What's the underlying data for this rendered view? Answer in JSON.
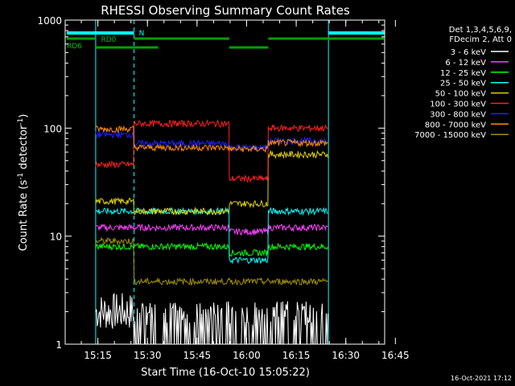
{
  "chart_data": {
    "type": "line",
    "title": "RHESSI Observing Summary Count Rates",
    "xlabel": "Start Time (16-Oct-10 15:05:22)",
    "ylabel_main": "Count Rate (s",
    "ylabel_sup1": "-1",
    "ylabel_mid": " detector",
    "ylabel_sup2": "-1",
    "ylabel_end": ")",
    "yscale": "log",
    "ylim": [
      1,
      1000
    ],
    "xlim_min": [
      5.37,
      102.0
    ],
    "y_ticks": [
      {
        "value": 1,
        "label": "1"
      },
      {
        "value": 10,
        "label": "10"
      },
      {
        "value": 100,
        "label": "100"
      },
      {
        "value": 1000,
        "label": "1000"
      }
    ],
    "x_ticks": [
      {
        "value": 15.25,
        "label": "15:15"
      },
      {
        "value": 30.25,
        "label": "15:30"
      },
      {
        "value": 45.25,
        "label": "15:45"
      },
      {
        "value": 60.25,
        "label": "16:00"
      },
      {
        "value": 75.25,
        "label": "16:15"
      },
      {
        "value": 90.25,
        "label": "16:30"
      },
      {
        "value": 105.25,
        "label": "16:45"
      }
    ],
    "legend_header": [
      "Det 1,3,4,5,6,9,",
      "FDecim 2, Att 0"
    ],
    "series": [
      {
        "name": "3 - 6 keV",
        "color": "#ffffff"
      },
      {
        "name": "6 - 12 keV",
        "color": "#ff40ff"
      },
      {
        "name": "12 - 25 keV",
        "color": "#00ff00"
      },
      {
        "name": "25 - 50 keV",
        "color": "#00ffff"
      },
      {
        "name": "50 - 100 keV",
        "color": "#e0d000"
      },
      {
        "name": "100 - 300 keV",
        "color": "#ff2020"
      },
      {
        "name": "300 - 800 keV",
        "color": "#2020ff"
      },
      {
        "name": "800 - 7000 keV",
        "color": "#ff8c00"
      },
      {
        "name": "7000 - 15000 keV",
        "color": "#a09000"
      }
    ],
    "segments": [
      {
        "t": [
          14.6,
          26.2
        ],
        "values": [
          2,
          12,
          8,
          17,
          21,
          46,
          87,
          98,
          9
        ]
      },
      {
        "t": [
          26.2,
          55.0
        ],
        "values": [
          1.6,
          12,
          8,
          17,
          17,
          110,
          72,
          66,
          3.8
        ]
      },
      {
        "t": [
          55.0,
          66.8
        ],
        "values": [
          1.4,
          11,
          7,
          6,
          20,
          34,
          66,
          64,
          3.8
        ]
      },
      {
        "t": [
          66.8,
          85.0
        ],
        "values": [
          1.6,
          12,
          8,
          17,
          57,
          100,
          76,
          73,
          3.8
        ]
      }
    ],
    "annotations": [
      {
        "label": "RD0"
      },
      {
        "label": "RD6"
      },
      {
        "label": "N"
      },
      {
        "label": "16-Oct-2021 17:12"
      }
    ]
  }
}
